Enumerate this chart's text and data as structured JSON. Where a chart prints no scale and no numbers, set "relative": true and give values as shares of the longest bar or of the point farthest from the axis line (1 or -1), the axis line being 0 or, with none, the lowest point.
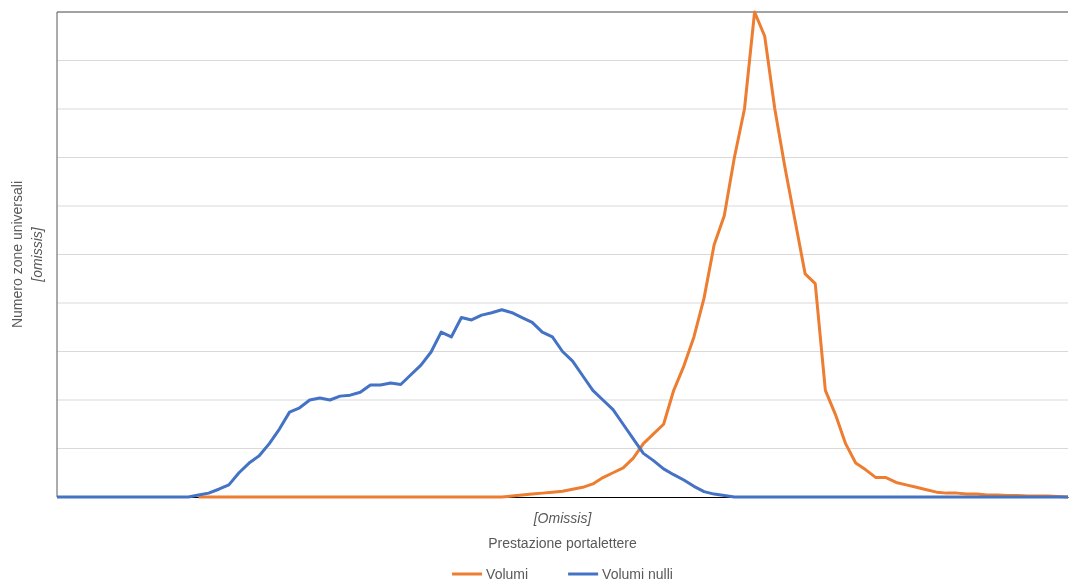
{
  "chart_data": {
    "type": "line",
    "relative": true,
    "xlabel": "Prestazione portalettere",
    "ylabel": "Numero zone universali",
    "annotations": [
      "[Omissis]",
      "[omissis]"
    ],
    "grid": "y",
    "legend": "bottom",
    "marker": "none",
    "line_style": "solid",
    "categories": [
      null,
      null,
      null,
      null,
      null,
      null,
      null,
      null,
      null,
      null,
      null,
      null,
      null,
      null,
      null,
      null,
      null,
      null,
      null,
      null,
      null,
      null,
      null,
      null,
      null,
      null,
      null,
      null,
      null,
      null,
      null,
      null,
      null,
      null,
      null,
      null,
      null,
      null,
      null,
      null,
      null,
      null,
      null,
      null,
      null,
      null,
      null,
      null,
      null,
      null,
      null,
      null,
      null,
      null,
      null,
      null,
      null,
      null,
      null,
      null,
      null,
      null,
      null,
      null,
      null,
      null,
      null,
      null,
      null,
      null,
      null,
      null,
      null,
      null,
      null,
      null,
      null,
      null,
      null,
      null,
      null,
      null,
      null,
      null,
      null,
      null,
      null,
      null,
      null,
      null,
      null,
      null,
      null,
      null,
      null,
      null,
      null,
      null,
      null,
      null,
      null
    ],
    "series": [
      {
        "name": "Volumi",
        "color": "#ed7d31",
        "values": [
          null,
          null,
          null,
          null,
          null,
          null,
          null,
          null,
          null,
          null,
          null,
          null,
          null,
          null,
          0,
          0,
          0,
          0,
          0,
          0,
          0,
          0,
          0,
          0,
          0,
          0,
          0,
          0,
          0,
          0,
          0,
          0,
          0,
          0,
          0,
          0,
          0,
          0,
          0,
          0,
          0,
          0,
          0,
          0,
          0,
          0.002,
          0.004,
          0.006,
          0.008,
          0.01,
          0.012,
          0.016,
          0.02,
          0.027,
          0.04,
          0.05,
          0.06,
          0.08,
          0.11,
          0.13,
          0.15,
          0.22,
          0.27,
          0.33,
          0.41,
          0.52,
          0.58,
          0.7,
          0.8,
          1.0,
          0.95,
          0.8,
          0.68,
          0.57,
          0.46,
          0.44,
          0.22,
          0.17,
          0.11,
          0.07,
          0.056,
          0.04,
          0.04,
          0.03,
          0.025,
          0.02,
          0.015,
          0.01,
          0.008,
          0.008,
          0.006,
          0.006,
          0.004,
          0.004,
          0.003,
          0.003,
          0.002,
          0.002,
          0.002,
          0.001,
          0
        ]
      },
      {
        "name": "Volumi nulli",
        "color": "#4472c4",
        "values": [
          0,
          0,
          0,
          0,
          0,
          0,
          0,
          0,
          0,
          0,
          0,
          0,
          0,
          0,
          0.004,
          0.008,
          0.016,
          0.025,
          0.05,
          0.07,
          0.085,
          0.11,
          0.14,
          0.175,
          0.184,
          0.2,
          0.204,
          0.2,
          0.208,
          0.21,
          0.216,
          0.231,
          0.231,
          0.235,
          0.232,
          0.252,
          0.272,
          0.299,
          0.34,
          0.33,
          0.37,
          0.365,
          0.375,
          0.38,
          0.386,
          0.38,
          0.37,
          0.36,
          0.34,
          0.33,
          0.3,
          0.28,
          0.25,
          0.22,
          0.2,
          0.18,
          0.15,
          0.12,
          0.09,
          0.075,
          0.058,
          0.046,
          0.035,
          0.022,
          0.011,
          0.006,
          0.003,
          0,
          0,
          0,
          0,
          0,
          0,
          0,
          0,
          0,
          0,
          0,
          0,
          0,
          0,
          0,
          0,
          0,
          0,
          0,
          0,
          0,
          0,
          0,
          0,
          0,
          0,
          0,
          0,
          0,
          0,
          0,
          0,
          0,
          0
        ]
      }
    ]
  }
}
